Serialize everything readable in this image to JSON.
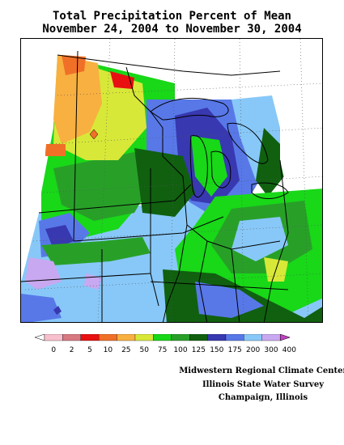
{
  "title_line1": "Total Precipitation Percent of Mean",
  "title_line2": "November 24, 2004 to November 30, 2004",
  "legend": {
    "labels": [
      "0",
      "2",
      "5",
      "10",
      "25",
      "50",
      "75",
      "100",
      "125",
      "150",
      "175",
      "200",
      "300",
      "400"
    ],
    "colors": [
      "#ffffff",
      "#f8c0cc",
      "#d87880",
      "#e81010",
      "#f07028",
      "#f8b040",
      "#d8e838",
      "#18d818",
      "#28a028",
      "#106010",
      "#3838b0",
      "#5878e8",
      "#88c8f8",
      "#c8a8f0",
      "#c040c0"
    ]
  },
  "credits": [
    "Midwestern Regional Climate Center",
    "Illinois State Water Survey",
    "Champaign, Illinois"
  ]
}
